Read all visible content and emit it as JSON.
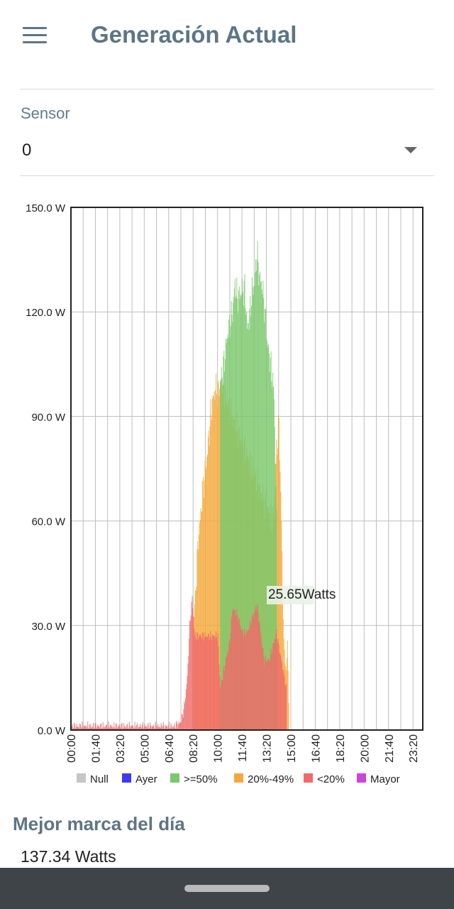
{
  "app": {
    "title": "Generación Actual"
  },
  "sensor": {
    "label": "Sensor",
    "value": "0"
  },
  "chart_data": {
    "type": "bar",
    "ylim": [
      0,
      150
    ],
    "y_ticks": [
      "0.0 W",
      "30.0 W",
      "60.0 W",
      "90.0 W",
      "120.0 W",
      "150.0 W"
    ],
    "y_tick_values": [
      0,
      30,
      60,
      90,
      120,
      150
    ],
    "x_ticks": [
      "00:00",
      "01:40",
      "03:20",
      "05:00",
      "06:40",
      "08:20",
      "10:00",
      "11:40",
      "13:20",
      "15:00",
      "16:40",
      "18:20",
      "20:00",
      "21:40",
      "23:20"
    ],
    "x_range_minutes": [
      0,
      1440
    ],
    "grid": true,
    "legend_position": "bottom",
    "legend": [
      {
        "name": "Null",
        "color": "#c6c6c6"
      },
      {
        "name": "Ayer",
        "color": "#3b3bf0"
      },
      {
        "name": ">=50%",
        "color": "#7bc86c"
      },
      {
        "name": "20%-49%",
        "color": "#f5a93a"
      },
      {
        "name": "<20%",
        "color": "#f06a6a"
      },
      {
        "name": "Mayor",
        "color": "#cc44dd"
      }
    ],
    "annotation": "25.65Watts",
    "max_watts": 137.34,
    "series": [
      {
        "name": "<20%",
        "color": "#f06a6a",
        "points": [
          [
            0,
            1
          ],
          [
            60,
            1
          ],
          [
            120,
            1
          ],
          [
            180,
            1
          ],
          [
            240,
            1
          ],
          [
            300,
            1
          ],
          [
            360,
            1
          ],
          [
            420,
            1
          ],
          [
            445,
            2
          ],
          [
            455,
            4
          ],
          [
            465,
            8
          ],
          [
            475,
            15
          ],
          [
            485,
            30
          ],
          [
            495,
            38
          ],
          [
            505,
            27
          ],
          [
            600,
            27
          ],
          [
            610,
            12
          ],
          [
            650,
            26
          ],
          [
            660,
            35
          ],
          [
            680,
            33
          ],
          [
            700,
            28
          ],
          [
            720,
            28
          ],
          [
            760,
            36
          ],
          [
            770,
            31
          ],
          [
            780,
            25
          ],
          [
            790,
            20
          ],
          [
            810,
            20
          ],
          [
            840,
            28
          ],
          [
            855,
            22
          ],
          [
            880,
            12
          ]
        ]
      },
      {
        "name": "20%-49%",
        "color": "#f5a93a",
        "points": [
          [
            500,
            30
          ],
          [
            510,
            42
          ],
          [
            520,
            55
          ],
          [
            530,
            62
          ],
          [
            540,
            70
          ],
          [
            550,
            75
          ],
          [
            560,
            82
          ],
          [
            570,
            90
          ],
          [
            580,
            95
          ],
          [
            590,
            98
          ],
          [
            600,
            97
          ],
          [
            610,
            99
          ],
          [
            820,
            60
          ],
          [
            830,
            62
          ],
          [
            840,
            80
          ],
          [
            850,
            88
          ],
          [
            860,
            60
          ],
          [
            865,
            40
          ],
          [
            870,
            25
          ],
          [
            880,
            16
          ],
          [
            885,
            26
          ],
          [
            890,
            8
          ]
        ]
      },
      {
        "name": ">=50%",
        "color": "#7bc86c",
        "points": [
          [
            610,
            100
          ],
          [
            620,
            103
          ],
          [
            630,
            108
          ],
          [
            640,
            114
          ],
          [
            650,
            117
          ],
          [
            660,
            120
          ],
          [
            670,
            128
          ],
          [
            680,
            124
          ],
          [
            690,
            125
          ],
          [
            700,
            126
          ],
          [
            710,
            127
          ],
          [
            720,
            115
          ],
          [
            730,
            119
          ],
          [
            740,
            126
          ],
          [
            750,
            128
          ],
          [
            760,
            137.34
          ],
          [
            770,
            130
          ],
          [
            780,
            128
          ],
          [
            790,
            122
          ],
          [
            800,
            112
          ],
          [
            810,
            108
          ],
          [
            820,
            103
          ],
          [
            830,
            96
          ],
          [
            840,
            60
          ]
        ]
      }
    ]
  },
  "best": {
    "label": "Mejor marca del día",
    "value": "137.34 Watts"
  }
}
